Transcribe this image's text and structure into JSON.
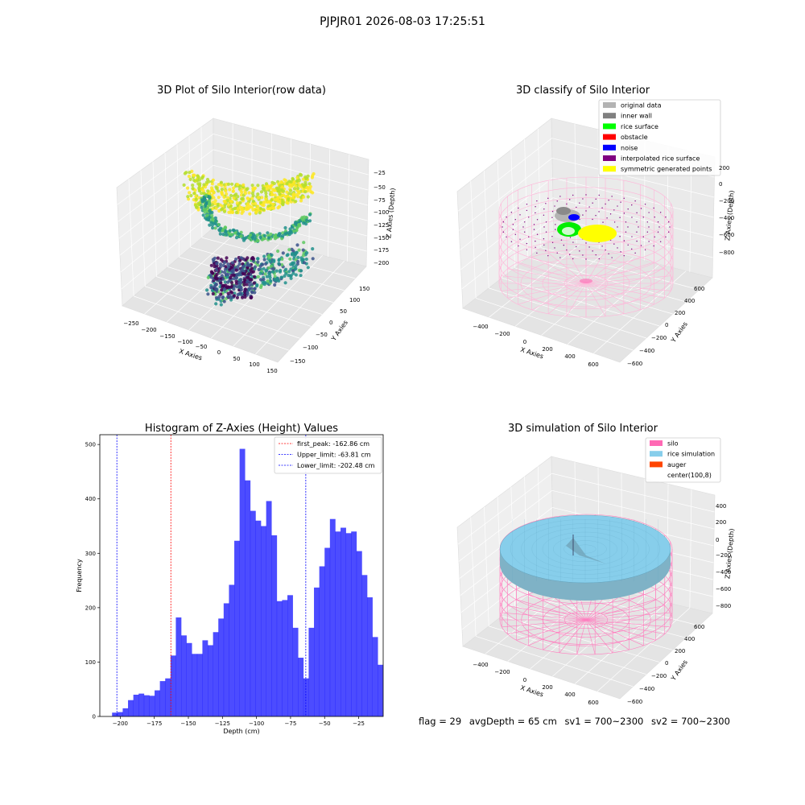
{
  "figure": {
    "suptitle": "PJPJR01 2026-08-03 17:25:51"
  },
  "status": {
    "flag": "flag = 29",
    "avg_depth": "avgDepth = 65 cm",
    "sv1": "sv1 = 700~2300",
    "sv2": "sv2 = 700~2300"
  },
  "chart_data": [
    {
      "type": "scatter",
      "title": "3D Plot of Silo Interior(row data)",
      "xlabel": "X Axies",
      "ylabel": "Y Axies",
      "zlabel": "Z Axies (Depth)",
      "xticks": [
        "−250",
        "−200",
        "−150",
        "−100",
        "−50",
        "0",
        "50",
        "100",
        "150"
      ],
      "yticks": [
        "−150",
        "−100",
        "−50",
        "0",
        "50",
        "100",
        "150"
      ],
      "zticks": [
        "−25",
        "−50",
        "−75",
        "−100",
        "−125",
        "−150",
        "−175",
        "−200"
      ],
      "colormap": "viridis"
    },
    {
      "type": "scatter",
      "title": "3D classify of Silo Interior",
      "xlabel": "X Axies",
      "ylabel": "Y Axies",
      "zlabel": "Z Axies (Depth)",
      "xticks": [
        "−400",
        "−200",
        "0",
        "200",
        "400",
        "600"
      ],
      "yticks": [
        "−600",
        "−400",
        "−200",
        "0",
        "200",
        "400",
        "600"
      ],
      "zticks": [
        "200",
        "0",
        "−200",
        "−400",
        "−600",
        "−800"
      ],
      "legend_position": "top-right",
      "legend": [
        {
          "label": "original data",
          "color": "#b3b3b3"
        },
        {
          "label": "inner wall",
          "color": "#808080"
        },
        {
          "label": "rice surface",
          "color": "#00ff00"
        },
        {
          "label": "obstacle",
          "color": "#ff0000"
        },
        {
          "label": "noise",
          "color": "#0000ff"
        },
        {
          "label": "interpolated rice surface",
          "color": "#800080"
        },
        {
          "label": "symmetric generated points",
          "color": "#ffff00"
        }
      ]
    },
    {
      "type": "bar",
      "title": "Histogram of Z-Axies (Height) Values",
      "xlabel": "Depth (cm)",
      "ylabel": "Frequency",
      "xlim": [
        -215,
        -7
      ],
      "ylim": [
        0,
        518
      ],
      "xticks": [
        -200,
        -175,
        -150,
        -125,
        -100,
        -75,
        -50,
        -25
      ],
      "xtick_labels": [
        "−200",
        "−175",
        "−150",
        "−125",
        "−100",
        "−75",
        "−50",
        "−25"
      ],
      "yticks": [
        0,
        100,
        200,
        300,
        400,
        500
      ],
      "ytick_labels": [
        "0",
        "100",
        "200",
        "300",
        "400",
        "500"
      ],
      "bar_color": "#0000ff",
      "bin_start": -206,
      "bin_width": 3.9,
      "values": [
        7,
        8,
        15,
        30,
        40,
        42,
        39,
        38,
        48,
        65,
        70,
        112,
        182,
        149,
        135,
        115,
        115,
        140,
        131,
        155,
        180,
        208,
        242,
        323,
        492,
        434,
        378,
        360,
        350,
        396,
        333,
        212,
        214,
        223,
        163,
        108,
        70,
        163,
        237,
        276,
        310,
        363,
        340,
        347,
        337,
        340,
        304,
        260,
        219,
        146,
        95
      ],
      "legend_position": "top-right",
      "vlines": [
        {
          "label": "first_peak: -162.86 cm",
          "x": -162.86,
          "color": "#ff0000"
        },
        {
          "label": "Upper_limit: -63.81 cm",
          "x": -63.81,
          "color": "#0000ff"
        },
        {
          "label": "Lower_limit: -202.48 cm",
          "x": -202.48,
          "color": "#0000ff"
        }
      ]
    },
    {
      "type": "scatter",
      "title": "3D simulation of Silo Interior",
      "xlabel": "X Axies",
      "ylabel": "Y Axies",
      "zlabel": "Z Axies (Depth)",
      "xticks": [
        "−400",
        "−200",
        "0",
        "200",
        "400",
        "600"
      ],
      "yticks": [
        "−600",
        "−400",
        "−200",
        "0",
        "200",
        "400",
        "600"
      ],
      "zticks": [
        "400",
        "200",
        "0",
        "−200",
        "−400",
        "−600",
        "−800"
      ],
      "legend_position": "top-right",
      "legend": [
        {
          "label": "silo",
          "color": "#ff69b4"
        },
        {
          "label": "rice simulation",
          "color": "#87ceeb"
        },
        {
          "label": "auger",
          "color": "#ff4500"
        },
        {
          "label": "center(100,8)",
          "color": "#ffffff"
        }
      ]
    }
  ]
}
